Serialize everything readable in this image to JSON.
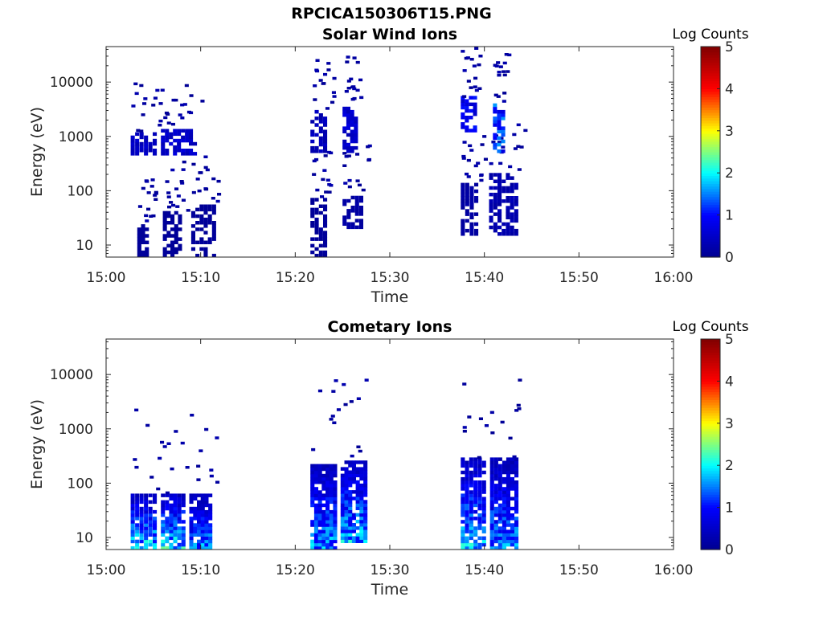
{
  "figure_title": "RPCICA150306T15.PNG",
  "colors": {
    "axis": "#262626",
    "background": "#ffffff",
    "colormap": [
      "#00008f",
      "#0000ff",
      "#00ffff",
      "#ffff00",
      "#ff0000",
      "#800000"
    ]
  },
  "chart_data": [
    {
      "type": "heatmap",
      "title": "Solar Wind Ions",
      "xlabel": "Time",
      "ylabel": "Energy (eV)",
      "yscale": "log",
      "ylim": [
        6,
        45000
      ],
      "xlim": [
        "15:00",
        "16:00"
      ],
      "xticks": [
        "15:00",
        "15:10",
        "15:20",
        "15:30",
        "15:40",
        "15:50",
        "16:00"
      ],
      "yticks": [
        10,
        100,
        1000,
        10000
      ],
      "ytick_labels": [
        "10",
        "100",
        "1000",
        "10000"
      ],
      "colorbar": {
        "label": "Log Counts",
        "range": [
          0,
          5
        ],
        "ticks": [
          "0",
          "1",
          "2",
          "3",
          "4",
          "5"
        ]
      },
      "grid": false,
      "clusters": [
        {
          "t_start": "15:02.6",
          "t_end": "15:05.4",
          "e_low": 450,
          "e_high": 1100,
          "level": 0.5
        },
        {
          "t_start": "15:03.3",
          "t_end": "15:04.5",
          "e_low": 6,
          "e_high": 22,
          "level": 0.1
        },
        {
          "t_start": "15:05.8",
          "t_end": "15:09.6",
          "e_low": 450,
          "e_high": 1200,
          "level": 0.6
        },
        {
          "t_start": "15:06.0",
          "t_end": "15:08.0",
          "e_low": 6,
          "e_high": 40,
          "level": 0.1
        },
        {
          "t_start": "15:09.0",
          "t_end": "15:11.2",
          "e_low": 6,
          "e_high": 55,
          "level": 0.1
        },
        {
          "t_start": "15:21.6",
          "t_end": "15:23.4",
          "e_low": 6,
          "e_high": 70,
          "level": 0.1
        },
        {
          "t_start": "15:21.6",
          "t_end": "15:23.4",
          "e_low": 500,
          "e_high": 3000,
          "level": 0.4
        },
        {
          "t_start": "15:25.0",
          "t_end": "15:27.2",
          "e_low": 20,
          "e_high": 80,
          "level": 0.2
        },
        {
          "t_start": "15:25.0",
          "t_end": "15:26.2",
          "e_low": 500,
          "e_high": 3500,
          "level": 0.6
        },
        {
          "t_start": "15:37.5",
          "t_end": "15:39.4",
          "e_low": 15,
          "e_high": 130,
          "level": 0.2
        },
        {
          "t_start": "15:37.5",
          "t_end": "15:38.8",
          "e_low": 1200,
          "e_high": 5000,
          "level": 0.9
        },
        {
          "t_start": "15:40.5",
          "t_end": "15:43.6",
          "e_low": 15,
          "e_high": 200,
          "level": 0.3
        },
        {
          "t_start": "15:40.9",
          "t_end": "15:42.2",
          "e_low": 500,
          "e_high": 4000,
          "level": 1.3
        }
      ]
    },
    {
      "type": "heatmap",
      "title": "Cometary Ions",
      "xlabel": "Time",
      "ylabel": "Energy (eV)",
      "yscale": "log",
      "ylim": [
        6,
        45000
      ],
      "xlim": [
        "15:00",
        "16:00"
      ],
      "xticks": [
        "15:00",
        "15:10",
        "15:20",
        "15:30",
        "15:40",
        "15:50",
        "16:00"
      ],
      "yticks": [
        10,
        100,
        1000,
        10000
      ],
      "ytick_labels": [
        "10",
        "100",
        "1000",
        "10000"
      ],
      "colorbar": {
        "label": "Log Counts",
        "range": [
          0,
          5
        ],
        "ticks": [
          "0",
          "1",
          "2",
          "3",
          "4",
          "5"
        ]
      },
      "grid": false,
      "clusters": [
        {
          "t_start": "15:02.6",
          "t_end": "15:05.4",
          "e_low": 6,
          "e_high": 60,
          "level": 1.9
        },
        {
          "t_start": "15:05.8",
          "t_end": "15:08.4",
          "e_low": 6,
          "e_high": 60,
          "level": 2.0
        },
        {
          "t_start": "15:08.8",
          "t_end": "15:11.2",
          "e_low": 6,
          "e_high": 60,
          "level": 1.6
        },
        {
          "t_start": "15:21.6",
          "t_end": "15:24.0",
          "e_low": 6,
          "e_high": 200,
          "level": 1.7
        },
        {
          "t_start": "15:24.8",
          "t_end": "15:27.2",
          "e_low": 8,
          "e_high": 260,
          "level": 1.8
        },
        {
          "t_start": "15:37.5",
          "t_end": "15:40.2",
          "e_low": 6,
          "e_high": 260,
          "level": 1.8
        },
        {
          "t_start": "15:40.6",
          "t_end": "15:43.6",
          "e_low": 6,
          "e_high": 260,
          "level": 1.6
        }
      ]
    }
  ]
}
